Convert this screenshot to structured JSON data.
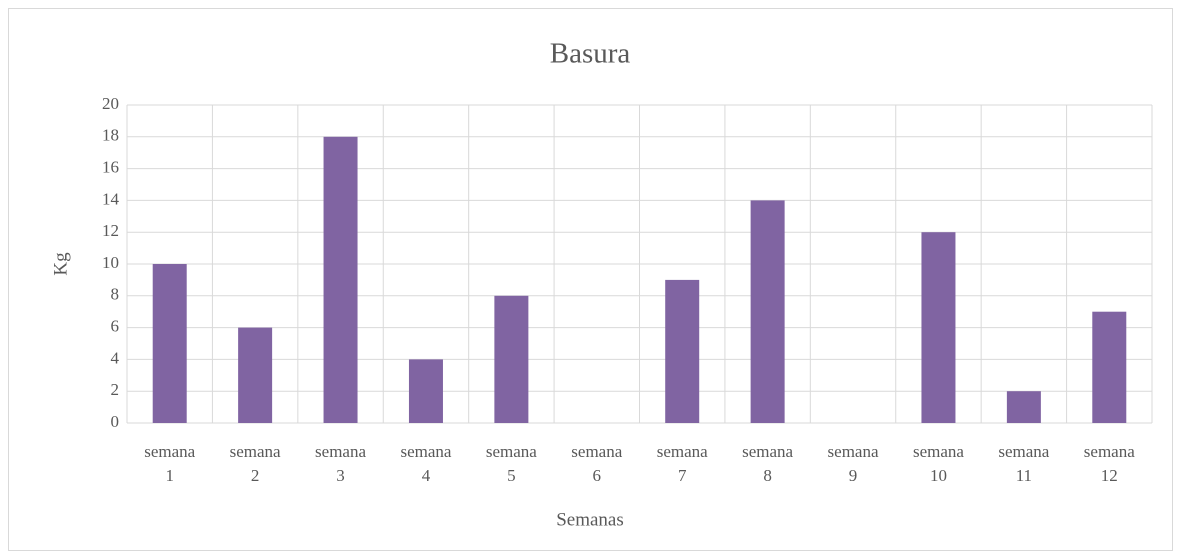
{
  "chart_data": {
    "type": "bar",
    "title": "Basura",
    "x_label": "Semanas",
    "y_label": "Kg",
    "categories": [
      "semana 1",
      "semana 2",
      "semana 3",
      "semana 4",
      "semana 5",
      "semana 6",
      "semana 7",
      "semana 8",
      "semana 9",
      "semana 10",
      "semana 11",
      "semana 12"
    ],
    "values": [
      10,
      6,
      18,
      4,
      8,
      0,
      9,
      14,
      0,
      12,
      2,
      7
    ],
    "color": "#8064a2",
    "ylim": [
      0,
      20
    ],
    "yticks": [
      0,
      2,
      4,
      6,
      8,
      10,
      12,
      14,
      16,
      18,
      20
    ],
    "grid": true
  }
}
